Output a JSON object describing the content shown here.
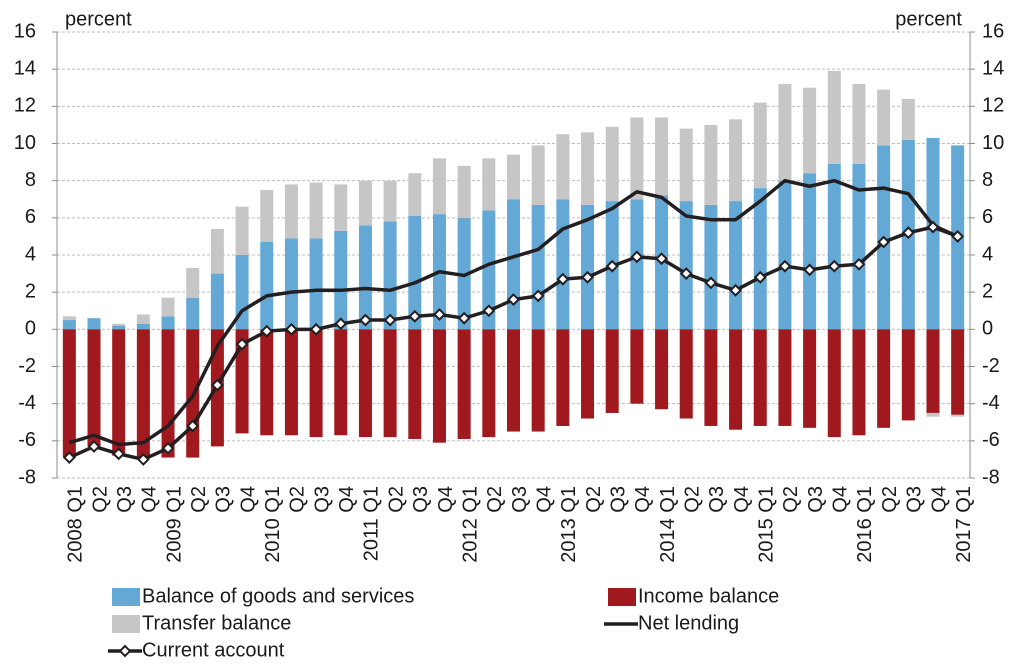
{
  "chart_data": {
    "type": "bar",
    "ylabel": "percent",
    "y2label": "percent",
    "categories": [
      "2008 Q1",
      "Q2",
      "Q3",
      "Q4",
      "2009 Q1",
      "Q2",
      "Q3",
      "Q4",
      "2010 Q1",
      "Q2",
      "Q3",
      "Q4",
      "2011 Q1",
      "Q2",
      "Q3",
      "Q4",
      "2012 Q1",
      "Q2",
      "Q3",
      "Q4",
      "2013 Q1",
      "Q2",
      "Q3",
      "Q4",
      "2014 Q1",
      "Q2",
      "Q3",
      "Q4",
      "2015 Q1",
      "Q2",
      "Q3",
      "Q4",
      "2016 Q1",
      "Q2",
      "Q3",
      "Q4",
      "2017 Q1"
    ],
    "series": [
      {
        "name": "Balance of goods and services",
        "type": "bar",
        "color": "#64a8d6",
        "values": [
          0.5,
          0.6,
          0.2,
          0.3,
          0.7,
          1.7,
          3.0,
          4.0,
          4.7,
          4.9,
          4.9,
          5.3,
          5.6,
          5.8,
          6.1,
          6.2,
          6.0,
          6.4,
          7.0,
          6.7,
          7.0,
          6.7,
          6.9,
          7.0,
          7.2,
          6.9,
          6.7,
          6.9,
          7.6,
          8.0,
          8.4,
          8.9,
          8.9,
          9.9,
          10.2,
          10.3,
          9.9
        ]
      },
      {
        "name": "Income balance",
        "type": "bar",
        "color": "#a0191e",
        "values": [
          -6.9,
          -6.3,
          -6.8,
          -6.9,
          -6.9,
          -6.9,
          -6.3,
          -5.6,
          -5.7,
          -5.7,
          -5.8,
          -5.7,
          -5.8,
          -5.8,
          -5.9,
          -6.1,
          -5.9,
          -5.8,
          -5.5,
          -5.5,
          -5.2,
          -4.8,
          -4.5,
          -4.0,
          -4.3,
          -4.8,
          -5.2,
          -5.4,
          -5.2,
          -5.2,
          -5.3,
          -5.8,
          -5.7,
          -5.3,
          -4.9,
          -4.5,
          -4.6
        ]
      },
      {
        "name": "Transfer balance",
        "type": "bar",
        "color": "#c6c6c6",
        "values": [
          0.2,
          0.0,
          0.1,
          0.5,
          1.0,
          1.6,
          2.4,
          2.6,
          2.8,
          2.9,
          3.0,
          2.5,
          2.4,
          2.2,
          2.3,
          3.0,
          2.8,
          2.8,
          2.4,
          3.2,
          3.5,
          3.9,
          4.0,
          4.4,
          4.2,
          3.9,
          4.3,
          4.4,
          4.6,
          5.2,
          4.6,
          5.0,
          4.3,
          3.0,
          2.2,
          -0.2,
          -0.1
        ]
      },
      {
        "name": "Net lending",
        "type": "line",
        "color": "#231f20",
        "values": [
          -6.1,
          -5.7,
          -6.2,
          -6.1,
          -5.2,
          -3.6,
          -0.9,
          1.0,
          1.8,
          2.0,
          2.1,
          2.1,
          2.2,
          2.1,
          2.5,
          3.1,
          2.9,
          3.5,
          3.9,
          4.3,
          5.4,
          5.9,
          6.5,
          7.4,
          7.1,
          6.1,
          5.9,
          5.9,
          6.9,
          8.0,
          7.7,
          8.0,
          7.5,
          7.6,
          7.3,
          5.6,
          5.0
        ]
      },
      {
        "name": "Current account",
        "type": "line",
        "marker": "diamond",
        "color": "#231f20",
        "values": [
          -6.9,
          -6.3,
          -6.7,
          -7.0,
          -6.4,
          -5.2,
          -3.0,
          -0.8,
          -0.1,
          0.0,
          0.0,
          0.3,
          0.5,
          0.5,
          0.7,
          0.8,
          0.6,
          1.0,
          1.6,
          1.8,
          2.7,
          2.8,
          3.4,
          3.9,
          3.8,
          3.0,
          2.5,
          2.1,
          2.8,
          3.4,
          3.2,
          3.4,
          3.5,
          4.7,
          5.2,
          5.5,
          5.0
        ]
      }
    ],
    "ylim": [
      -8,
      16
    ],
    "yticks": [
      -8,
      -6,
      -4,
      -2,
      0,
      2,
      4,
      6,
      8,
      10,
      12,
      14,
      16
    ],
    "y2lim": [
      -8,
      16
    ],
    "y2ticks": [
      -8,
      -6,
      -4,
      -2,
      0,
      2,
      4,
      6,
      8,
      10,
      12,
      14,
      16
    ],
    "grid": true
  }
}
